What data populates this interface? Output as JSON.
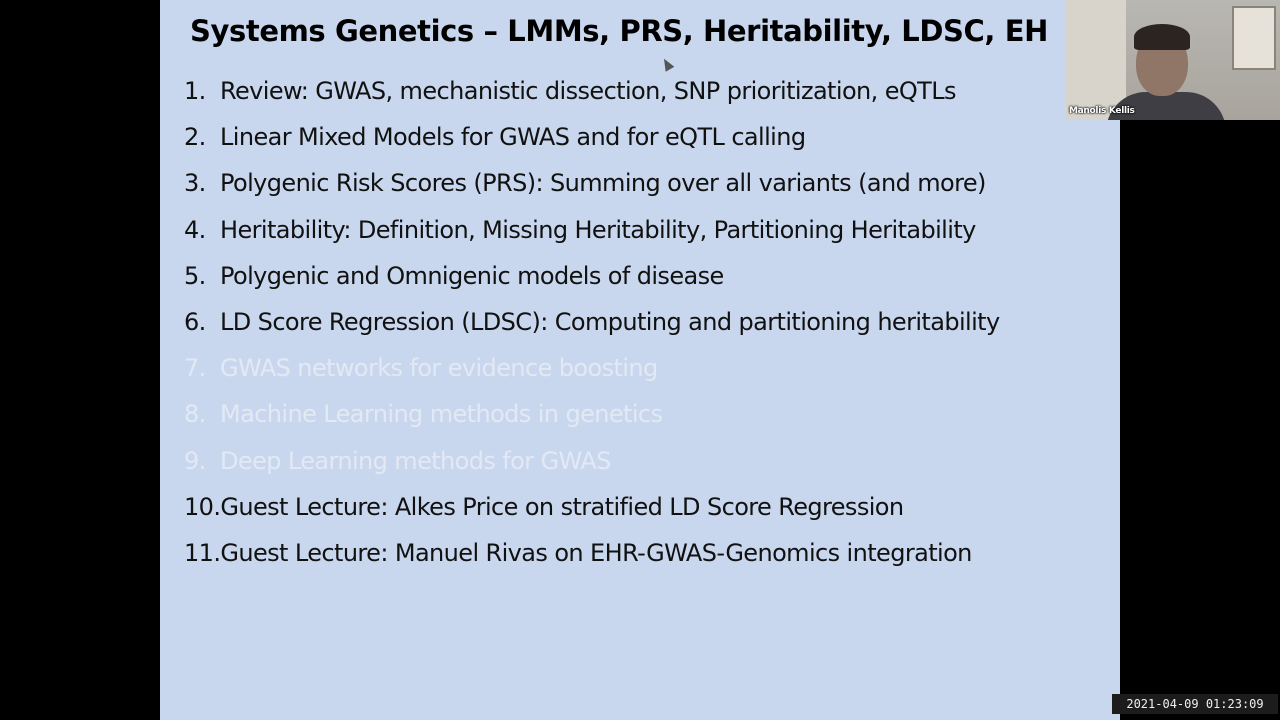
{
  "slide": {
    "title": "Systems Genetics – LMMs, PRS, Heritability, LDSC, EH",
    "background_color": "#c8d7ee",
    "dimmed_text_color": "#e3e9f4",
    "items": [
      {
        "number": "1.",
        "text": "Review: GWAS, mechanistic dissection, SNP prioritization, eQTLs",
        "dimmed": false
      },
      {
        "number": "2.",
        "text": "Linear Mixed Models for GWAS and for eQTL calling",
        "dimmed": false
      },
      {
        "number": "3.",
        "text": "Polygenic Risk Scores (PRS): Summing over all variants (and more)",
        "dimmed": false
      },
      {
        "number": "4.",
        "text": "Heritability: Definition, Missing Heritability, Partitioning Heritability",
        "dimmed": false
      },
      {
        "number": "5.",
        "text": "Polygenic and Omnigenic models of disease",
        "dimmed": false
      },
      {
        "number": "6.",
        "text": "LD Score Regression (LDSC): Computing and partitioning heritability",
        "dimmed": false
      },
      {
        "number": "7.",
        "text": "GWAS networks for evidence boosting",
        "dimmed": true
      },
      {
        "number": "8.",
        "text": "Machine Learning methods in genetics",
        "dimmed": true
      },
      {
        "number": "9.",
        "text": "Deep Learning methods for GWAS",
        "dimmed": true
      },
      {
        "number": "10.",
        "text": "Guest Lecture: Alkes Price on stratified LD Score Regression",
        "dimmed": false
      },
      {
        "number": "11.",
        "text": "Guest Lecture: Manuel Rivas on EHR-GWAS-Genomics integration",
        "dimmed": false
      }
    ]
  },
  "webcam": {
    "participant_name": "Manolis Kellis"
  },
  "recording": {
    "timestamp": "2021-04-09 01:23:09"
  }
}
